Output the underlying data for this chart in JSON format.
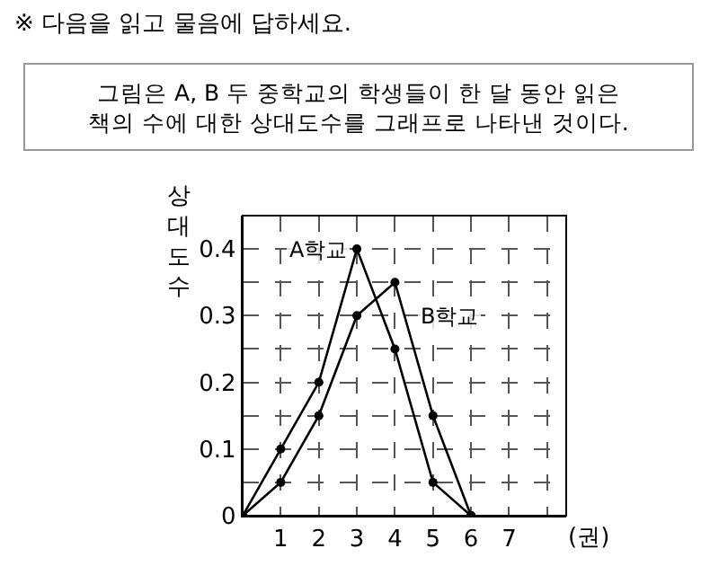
{
  "chart_data": {
    "type": "line",
    "title": "※ 다음을 읽고 물음에 답하세요.",
    "subtitle": "그림은 A, B 두 중학교의 학생들이 한 달 동안 읽은 책의 수에 대한 상대도수를 그래프로 나타낸 것이다.",
    "xlabel": "(권)",
    "ylabel": "상대도수",
    "x": [
      0,
      1,
      2,
      3,
      4,
      5,
      6
    ],
    "series": [
      {
        "name": "A학교",
        "color": "#000000",
        "values": [
          0,
          0.1,
          0.2,
          0.4,
          0.25,
          0.05,
          0
        ]
      },
      {
        "name": "B학교",
        "color": "#000000",
        "values": [
          0,
          0.05,
          0.15,
          0.3,
          0.35,
          0.15,
          0
        ]
      }
    ],
    "xlim": [
      0,
      8.5
    ],
    "xticks": [
      1,
      2,
      3,
      4,
      5,
      6,
      7,
      {
        "value": 8,
        "label": null
      }
    ],
    "ylim": [
      0,
      0.45
    ],
    "yticks": [
      0,
      {
        "value": 0.05,
        "label": null
      },
      0.1,
      {
        "value": 0.15,
        "label": null
      },
      0.2,
      {
        "value": 0.25,
        "label": null
      },
      0.3,
      {
        "value": 0.35,
        "label": null
      },
      0.4
    ],
    "grid": true,
    "legend": false,
    "marker": "circle",
    "line_style": "solid"
  }
}
